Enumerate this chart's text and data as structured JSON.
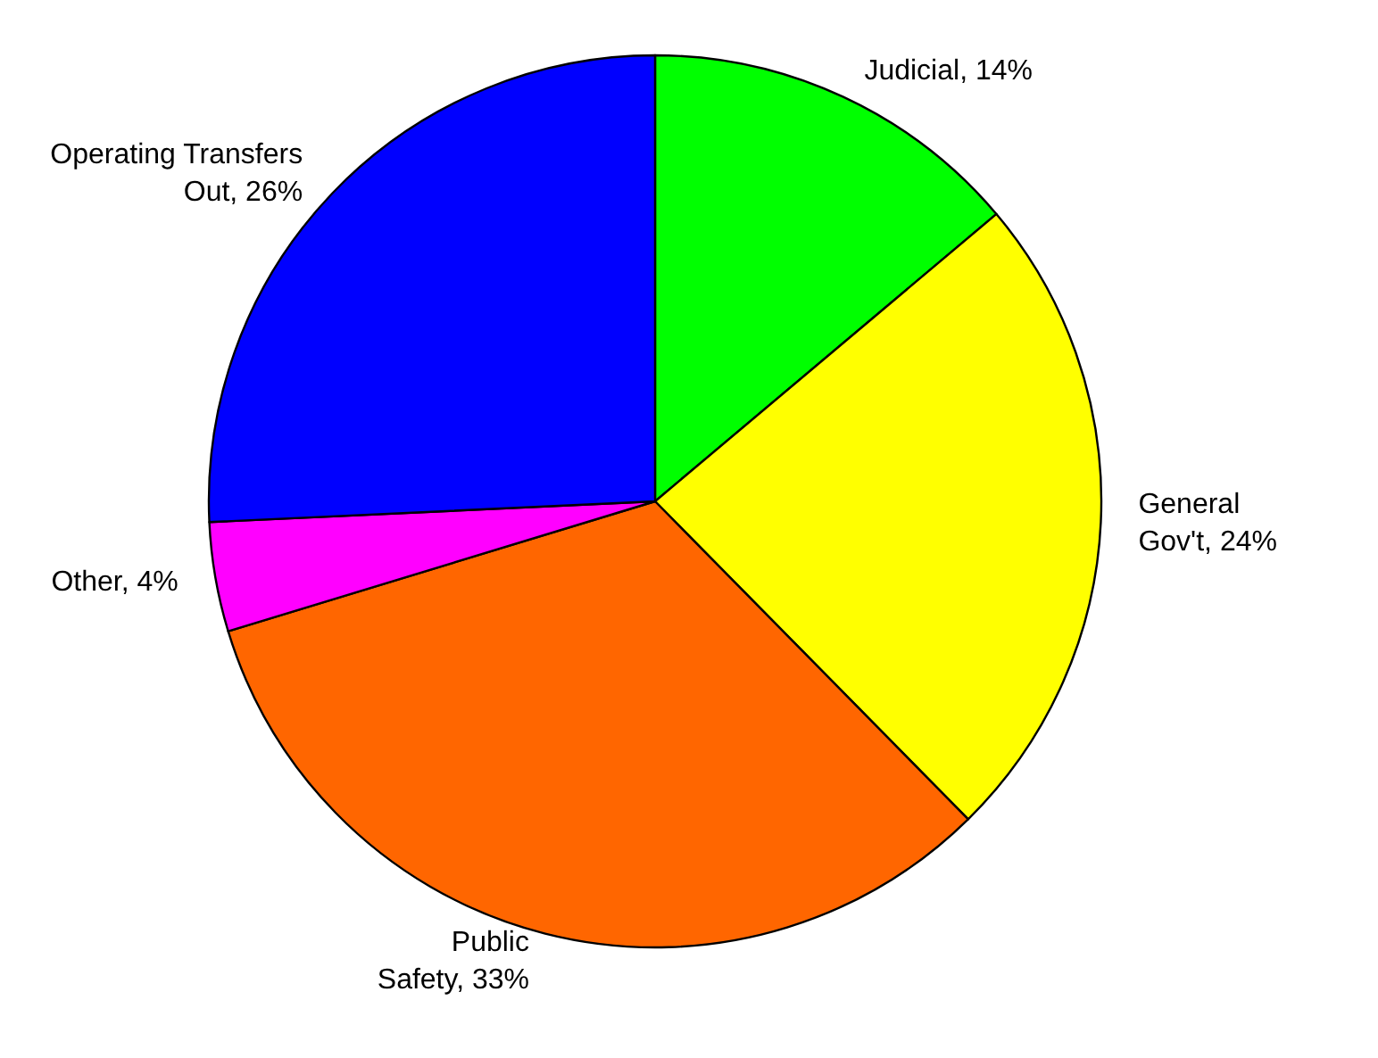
{
  "chart_data": {
    "type": "pie",
    "categories": [
      "Judicial",
      "General Gov't",
      "Public Safety",
      "Other",
      "Operating Transfers Out"
    ],
    "values": [
      14,
      24,
      33,
      4,
      26
    ],
    "value_labels": [
      "14%",
      "24%",
      "33%",
      "4%",
      "26%"
    ],
    "colors": [
      "#00ff00",
      "#ffff00",
      "#ff6600",
      "#ff00ff",
      "#0000ff"
    ],
    "legend": false
  }
}
